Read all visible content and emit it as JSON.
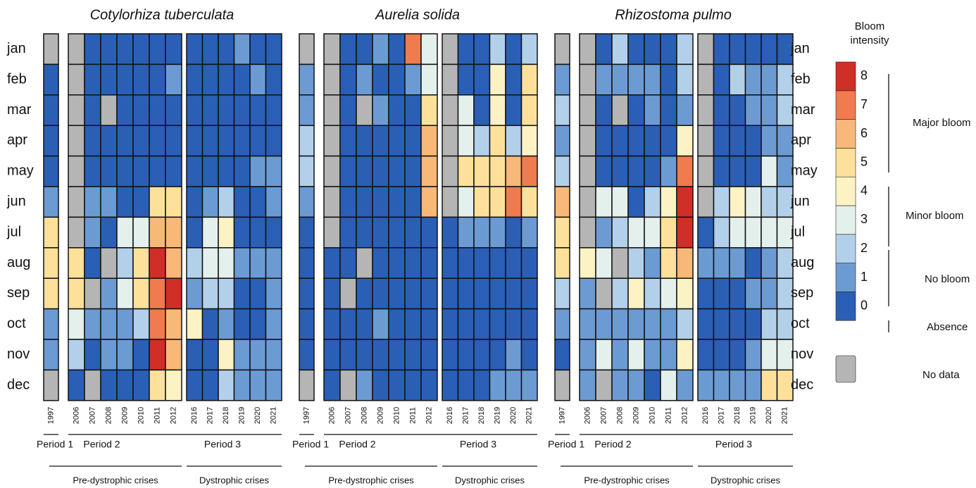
{
  "chart_data": {
    "type": "heatmap",
    "y": [
      "jan",
      "feb",
      "mar",
      "apr",
      "may",
      "jun",
      "jul",
      "aug",
      "sep",
      "oct",
      "nov",
      "dec"
    ],
    "x": [
      "1997",
      "2006",
      "2007",
      "2008",
      "2009",
      "2010",
      "2011",
      "2012",
      "2016",
      "2017",
      "2018",
      "2019",
      "2020",
      "2021"
    ],
    "periods": [
      "Period 1",
      "Period 2",
      "Period 3"
    ],
    "crises": [
      "Pre-dystrophic crises",
      "Dystrophic crises"
    ],
    "panels": [
      {
        "title": "Cotylorhiza tuberculata",
        "values": [
          [
            null,
            null,
            0,
            0,
            0,
            0,
            0,
            0,
            0,
            0,
            0,
            1,
            0,
            0
          ],
          [
            0,
            null,
            0,
            0,
            0,
            0,
            0,
            1,
            0,
            0,
            0,
            0,
            1,
            0
          ],
          [
            0,
            null,
            0,
            null,
            0,
            0,
            0,
            0,
            0,
            0,
            0,
            0,
            0,
            0
          ],
          [
            0,
            null,
            0,
            0,
            0,
            0,
            0,
            0,
            0,
            0,
            0,
            0,
            0,
            0
          ],
          [
            0,
            null,
            0,
            0,
            0,
            0,
            0,
            0,
            0,
            0,
            0,
            0,
            1,
            1
          ],
          [
            1,
            null,
            1,
            1,
            0,
            0,
            5,
            5,
            0,
            1,
            2,
            0,
            0,
            1
          ],
          [
            5,
            null,
            1,
            0,
            3,
            3,
            6,
            6,
            0,
            3,
            4,
            0,
            0,
            0
          ],
          [
            5,
            5,
            0,
            null,
            2,
            5,
            8,
            6,
            2,
            3,
            3,
            1,
            1,
            1
          ],
          [
            5,
            5,
            null,
            1,
            3,
            5,
            7,
            8,
            1,
            2,
            2,
            0,
            0,
            1
          ],
          [
            1,
            3,
            1,
            1,
            1,
            2,
            7,
            6,
            4,
            0,
            1,
            0,
            0,
            1
          ],
          [
            1,
            2,
            0,
            1,
            1,
            0,
            8,
            6,
            0,
            0,
            4,
            1,
            1,
            1
          ],
          [
            null,
            0,
            null,
            0,
            0,
            0,
            5,
            4,
            0,
            0,
            2,
            1,
            1,
            1
          ]
        ]
      },
      {
        "title": "Aurelia solida",
        "values": [
          [
            null,
            null,
            0,
            0,
            1,
            0,
            7,
            3,
            null,
            0,
            0,
            2,
            0,
            2
          ],
          [
            1,
            null,
            0,
            1,
            0,
            0,
            1,
            3,
            null,
            0,
            0,
            4,
            0,
            5
          ],
          [
            1,
            null,
            0,
            null,
            1,
            0,
            0,
            5,
            null,
            3,
            0,
            4,
            0,
            5
          ],
          [
            2,
            null,
            0,
            0,
            0,
            0,
            0,
            6,
            null,
            3,
            2,
            5,
            2,
            4
          ],
          [
            2,
            null,
            0,
            0,
            0,
            0,
            0,
            6,
            null,
            5,
            5,
            5,
            6,
            7
          ],
          [
            1,
            null,
            0,
            0,
            0,
            0,
            0,
            6,
            null,
            3,
            5,
            5,
            7,
            5
          ],
          [
            0,
            null,
            0,
            0,
            0,
            0,
            0,
            0,
            0,
            1,
            1,
            1,
            0,
            1
          ],
          [
            0,
            0,
            0,
            null,
            0,
            0,
            0,
            0,
            0,
            0,
            0,
            0,
            0,
            0
          ],
          [
            0,
            0,
            null,
            0,
            0,
            0,
            0,
            0,
            0,
            0,
            0,
            0,
            0,
            0
          ],
          [
            0,
            0,
            0,
            0,
            1,
            0,
            0,
            0,
            0,
            0,
            0,
            0,
            0,
            0
          ],
          [
            0,
            0,
            0,
            0,
            0,
            0,
            0,
            0,
            0,
            0,
            0,
            0,
            1,
            0
          ],
          [
            null,
            0,
            null,
            1,
            0,
            0,
            0,
            0,
            0,
            0,
            0,
            1,
            1,
            1
          ]
        ]
      },
      {
        "title": "Rhizostoma pulmo",
        "values": [
          [
            null,
            null,
            0,
            2,
            0,
            0,
            0,
            2,
            null,
            0,
            0,
            0,
            0,
            0
          ],
          [
            1,
            null,
            1,
            1,
            1,
            1,
            0,
            2,
            null,
            0,
            2,
            1,
            1,
            2
          ],
          [
            2,
            null,
            0,
            null,
            0,
            1,
            0,
            1,
            null,
            0,
            0,
            1,
            1,
            2
          ],
          [
            1,
            null,
            0,
            0,
            0,
            0,
            0,
            4,
            null,
            0,
            0,
            0,
            1,
            1
          ],
          [
            2,
            null,
            0,
            0,
            0,
            0,
            1,
            7,
            null,
            0,
            0,
            0,
            3,
            1
          ],
          [
            6,
            null,
            3,
            3,
            0,
            2,
            4,
            8,
            null,
            2,
            4,
            3,
            2,
            2
          ],
          [
            5,
            null,
            1,
            2,
            3,
            3,
            5,
            8,
            0,
            2,
            3,
            3,
            3,
            3
          ],
          [
            5,
            4,
            3,
            null,
            2,
            1,
            5,
            6,
            1,
            1,
            1,
            0,
            1,
            2
          ],
          [
            2,
            1,
            null,
            2,
            4,
            2,
            3,
            4,
            0,
            0,
            0,
            1,
            1,
            2
          ],
          [
            1,
            1,
            1,
            1,
            1,
            1,
            1,
            2,
            0,
            0,
            0,
            0,
            2,
            2
          ],
          [
            0,
            1,
            3,
            1,
            3,
            1,
            1,
            4,
            0,
            0,
            0,
            1,
            3,
            3
          ],
          [
            null,
            1,
            null,
            1,
            1,
            0,
            3,
            1,
            1,
            1,
            1,
            1,
            5,
            5
          ]
        ]
      }
    ],
    "legend": {
      "title": "Bloom intensity",
      "ticks": [
        0,
        1,
        2,
        3,
        4,
        5,
        6,
        7,
        8
      ],
      "colors": [
        "#2a5fb5",
        "#6b9bd2",
        "#b3d0ea",
        "#e4f0eb",
        "#fcf2c4",
        "#fde19a",
        "#f8b878",
        "#ef7b4f",
        "#d02f27"
      ],
      "no_data_color": "#b5b5b5",
      "groups": [
        "Major bloom",
        "Minor bloom",
        "No bloom",
        "Absence"
      ],
      "no_data_label": "No data"
    }
  }
}
